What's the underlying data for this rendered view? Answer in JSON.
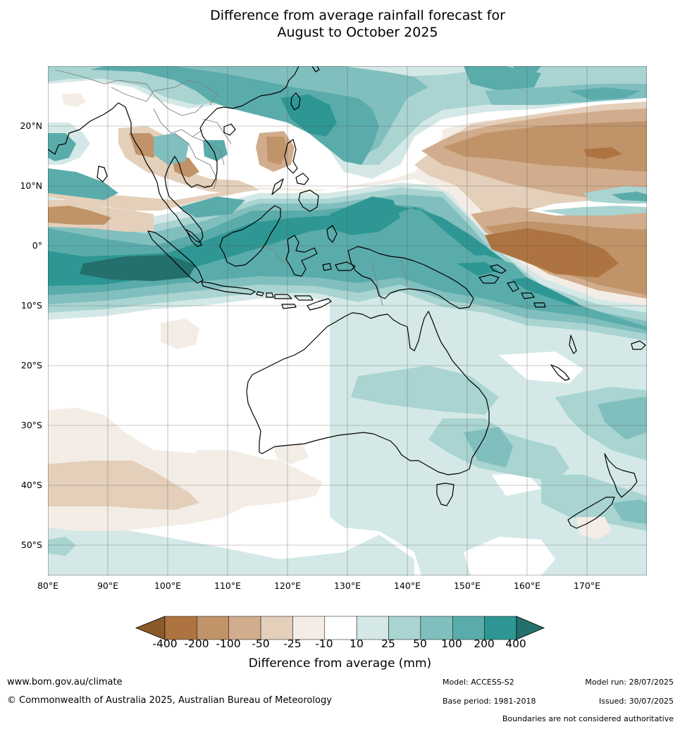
{
  "title": {
    "line1": "Difference from average rainfall forecast for",
    "line2": "August to October 2025"
  },
  "lat_labels": [
    "20°N",
    "10°N",
    "0°",
    "10°S",
    "20°S",
    "30°S",
    "40°S",
    "50°S"
  ],
  "lon_labels": [
    "80°E",
    "90°E",
    "100°E",
    "110°E",
    "120°E",
    "130°E",
    "140°E",
    "150°E",
    "160°E",
    "170°E"
  ],
  "colorbar": {
    "labels": [
      "-400",
      "-200",
      "-100",
      "-50",
      "-25",
      "-10",
      "10",
      "25",
      "50",
      "100",
      "200",
      "400"
    ],
    "colors": [
      "#8c5a2a",
      "#ad7441",
      "#c09369",
      "#d1ad8d",
      "#e4cfba",
      "#f3ede6",
      "#ffffff",
      "#d4e9e7",
      "#a9d4d2",
      "#81bfbe",
      "#5aacab",
      "#2e9793",
      "#23706d"
    ],
    "title": "Difference from average (mm)"
  },
  "map": {
    "region": "Indian Ocean, Maritime Continent, Australia and Western Pacific",
    "lon_range": [
      80,
      180
    ],
    "lat_range": [
      -55,
      30
    ],
    "boundaries": [
      "coastlines",
      "country borders"
    ]
  },
  "footer": {
    "website": "www.bom.gov.au/climate",
    "copyright": "© Commonwealth of Australia 2025, Australian Bureau of Meteorology",
    "model": "Model: ACCESS-S2",
    "base_period": "Base period: 1981-2018",
    "model_run": "Model run: 28/07/2025",
    "issued": "Issued: 30/07/2025",
    "disclaimer": "Boundaries are not considered authoritative"
  }
}
